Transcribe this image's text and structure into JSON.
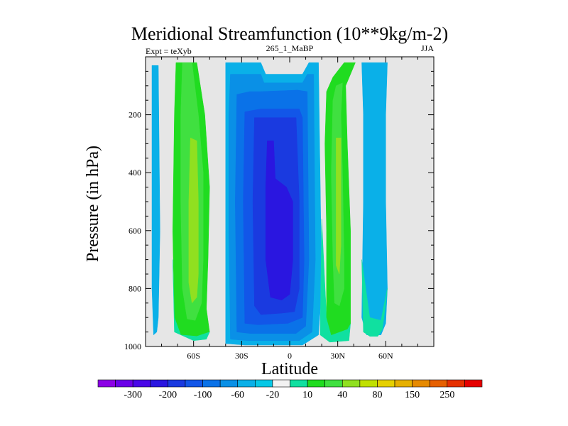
{
  "chart_data": {
    "type": "contour",
    "title": "Meridional Streamfunction (10**9kg/m-2)",
    "left_label": "Expt = teXyb",
    "center_label": "265_1_MaBP",
    "right_label": "JJA",
    "xlabel": "Latitude",
    "ylabel": "Pressure (in hPa)",
    "xlim": [
      -90,
      90
    ],
    "ylim": [
      1000,
      0
    ],
    "x_ticks": [
      {
        "value": -60,
        "label": "60S"
      },
      {
        "value": -30,
        "label": "30S"
      },
      {
        "value": 0,
        "label": "0"
      },
      {
        "value": 30,
        "label": "30N"
      },
      {
        "value": 60,
        "label": "60N"
      }
    ],
    "y_ticks": [
      {
        "value": 200,
        "label": "200"
      },
      {
        "value": 400,
        "label": "400"
      },
      {
        "value": 600,
        "label": "600"
      },
      {
        "value": 800,
        "label": "800"
      },
      {
        "value": 1000,
        "label": "1000"
      }
    ],
    "missing_color": "#e6e6e6",
    "colorbar": {
      "colors": [
        "#8c00e6",
        "#6a00e8",
        "#4a08e8",
        "#2a16e0",
        "#1a3ae0",
        "#1256e8",
        "#0a72e8",
        "#0a90e6",
        "#0ab0e8",
        "#06c8e6",
        "#f2f2f2",
        "#10e0a0",
        "#20dc20",
        "#40e040",
        "#90e020",
        "#c0e000",
        "#e6d000",
        "#e6b000",
        "#e68a00",
        "#e66000",
        "#e63000",
        "#e60000"
      ],
      "labels": [
        {
          "after": 1,
          "text": "-300"
        },
        {
          "after": 3,
          "text": "-200"
        },
        {
          "after": 5,
          "text": "-100"
        },
        {
          "after": 7,
          "text": "-60"
        },
        {
          "after": 9,
          "text": "-20"
        },
        {
          "after": 11,
          "text": "10"
        },
        {
          "after": 13,
          "text": "40"
        },
        {
          "after": 15,
          "text": "80"
        },
        {
          "after": 17,
          "text": "150"
        },
        {
          "after": 19,
          "text": "250"
        }
      ]
    },
    "contour_polygons": [
      {
        "level": "-20 to 10",
        "color": "#0ab0e8",
        "lat_p": [
          [
            -86,
            30
          ],
          [
            -82,
            30
          ],
          [
            -81,
            600
          ],
          [
            -82,
            900
          ],
          [
            -83,
            950
          ],
          [
            -85,
            960
          ],
          [
            -86,
            800
          ]
        ]
      },
      {
        "level": "10 to 40",
        "color": "#20dc20",
        "lat_p": [
          [
            -71,
            20
          ],
          [
            -58,
            20
          ],
          [
            -53,
            200
          ],
          [
            -50,
            450
          ],
          [
            -51,
            700
          ],
          [
            -52,
            870
          ],
          [
            -50,
            950
          ],
          [
            -58,
            965
          ],
          [
            -68,
            960
          ],
          [
            -72,
            900
          ],
          [
            -73,
            600
          ],
          [
            -72,
            200
          ]
        ]
      },
      {
        "level": "40 to 80",
        "color": "#40e040",
        "lat_p": [
          [
            -67,
            20
          ],
          [
            -61,
            20
          ],
          [
            -57,
            200
          ],
          [
            -54,
            400
          ],
          [
            -54,
            700
          ],
          [
            -55,
            850
          ],
          [
            -59,
            910
          ],
          [
            -64,
            905
          ],
          [
            -67,
            800
          ],
          [
            -68,
            500
          ],
          [
            -68,
            200
          ]
        ]
      },
      {
        "level": "80 to 150",
        "color": "#90e020",
        "lat_p": [
          [
            -62,
            280
          ],
          [
            -58,
            290
          ],
          [
            -57,
            500
          ],
          [
            -57,
            750
          ],
          [
            -58,
            830
          ],
          [
            -61,
            850
          ],
          [
            -63,
            780
          ],
          [
            -63,
            500
          ]
        ]
      },
      {
        "level": "10 to 40",
        "color": "#10e0a0",
        "lat_p": [
          [
            -73,
            700
          ],
          [
            -72,
            950
          ],
          [
            -60,
            980
          ],
          [
            -52,
            975
          ],
          [
            -50,
            950
          ],
          [
            -58,
            965
          ],
          [
            -68,
            960
          ],
          [
            -72,
            900
          ]
        ]
      },
      {
        "level": "-20 to 10",
        "color": "#0ab0e8",
        "lat_p": [
          [
            -40,
            20
          ],
          [
            -18,
            20
          ],
          [
            -15,
            60
          ],
          [
            8,
            60
          ],
          [
            12,
            20
          ],
          [
            18,
            20
          ],
          [
            20,
            800
          ],
          [
            18,
            960
          ],
          [
            8,
            995
          ],
          [
            -28,
            995
          ],
          [
            -40,
            990
          ],
          [
            -40,
            600
          ],
          [
            -40,
            200
          ]
        ]
      },
      {
        "level": "-60 to -20",
        "color": "#0a90e6",
        "lat_p": [
          [
            -37,
            60
          ],
          [
            -18,
            60
          ],
          [
            -16,
            90
          ],
          [
            8,
            90
          ],
          [
            11,
            60
          ],
          [
            15,
            60
          ],
          [
            16,
            700
          ],
          [
            14,
            950
          ],
          [
            6,
            980
          ],
          [
            -26,
            980
          ],
          [
            -37,
            975
          ],
          [
            -38,
            600
          ],
          [
            -38,
            200
          ]
        ]
      },
      {
        "level": "-100 to -60",
        "color": "#0a72e8",
        "lat_p": [
          [
            -33,
            130
          ],
          [
            -25,
            120
          ],
          [
            -18,
            120
          ],
          [
            5,
            115
          ],
          [
            11,
            120
          ],
          [
            12,
            700
          ],
          [
            10,
            930
          ],
          [
            4,
            955
          ],
          [
            -25,
            955
          ],
          [
            -33,
            950
          ],
          [
            -34,
            500
          ]
        ]
      },
      {
        "level": "-100",
        "color": "#1256e8",
        "lat_p": [
          [
            -28,
            190
          ],
          [
            -18,
            180
          ],
          [
            6,
            180
          ],
          [
            8,
            210
          ],
          [
            9,
            700
          ],
          [
            8,
            900
          ],
          [
            -1,
            920
          ],
          [
            -20,
            925
          ],
          [
            -28,
            920
          ],
          [
            -29,
            500
          ]
        ]
      },
      {
        "level": "-150",
        "color": "#1a3ae0",
        "lat_p": [
          [
            -22,
            210
          ],
          [
            4,
            210
          ],
          [
            6,
            500
          ],
          [
            6,
            800
          ],
          [
            3,
            880
          ],
          [
            -5,
            885
          ],
          [
            -18,
            890
          ],
          [
            -22,
            860
          ],
          [
            -23,
            500
          ]
        ]
      },
      {
        "level": "-200",
        "color": "#2a16e0",
        "lat_p": [
          [
            -14,
            290
          ],
          [
            -10,
            290
          ],
          [
            -9,
            420
          ],
          [
            -2,
            450
          ],
          [
            2,
            500
          ],
          [
            2,
            700
          ],
          [
            0,
            820
          ],
          [
            -5,
            840
          ],
          [
            -12,
            830
          ],
          [
            -15,
            700
          ],
          [
            -15,
            450
          ]
        ]
      },
      {
        "level": "10 to 40",
        "color": "#10e0a0",
        "lat_p": [
          [
            20,
            560
          ],
          [
            19,
            960
          ],
          [
            25,
            985
          ],
          [
            37,
            980
          ],
          [
            38,
            920
          ],
          [
            36,
            940
          ],
          [
            26,
            960
          ],
          [
            23,
            900
          ]
        ]
      },
      {
        "level": "10 to 40",
        "color": "#20dc20",
        "lat_p": [
          [
            23,
            120
          ],
          [
            27,
            70
          ],
          [
            34,
            20
          ],
          [
            41,
            20
          ],
          [
            35,
            100
          ],
          [
            36,
            300
          ],
          [
            38,
            600
          ],
          [
            38,
            920
          ],
          [
            36,
            940
          ],
          [
            26,
            960
          ],
          [
            23,
            900
          ],
          [
            23,
            600
          ],
          [
            22,
            300
          ]
        ]
      },
      {
        "level": "40 to 80",
        "color": "#40e040",
        "lat_p": [
          [
            27,
            150
          ],
          [
            29,
            100
          ],
          [
            33,
            90
          ],
          [
            32,
            200
          ],
          [
            33,
            400
          ],
          [
            34,
            700
          ],
          [
            34,
            800
          ],
          [
            31,
            860
          ],
          [
            28,
            850
          ],
          [
            27,
            700
          ],
          [
            26,
            400
          ]
        ]
      },
      {
        "level": "80 to 150",
        "color": "#90e020",
        "lat_p": [
          [
            29,
            280
          ],
          [
            32,
            280
          ],
          [
            32,
            500
          ],
          [
            32,
            650
          ],
          [
            31,
            750
          ],
          [
            29,
            720
          ],
          [
            29,
            500
          ]
        ]
      },
      {
        "level": "-20 to 10",
        "color": "#0ab0e8",
        "lat_p": [
          [
            45,
            20
          ],
          [
            61,
            20
          ],
          [
            60,
            200
          ],
          [
            60,
            500
          ],
          [
            61,
            800
          ],
          [
            60,
            920
          ],
          [
            57,
            960
          ],
          [
            48,
            960
          ],
          [
            45,
            900
          ],
          [
            46,
            500
          ],
          [
            46,
            200
          ]
        ]
      },
      {
        "level": "10 to 40",
        "color": "#10e0a0",
        "lat_p": [
          [
            45,
            700
          ],
          [
            46,
            950
          ],
          [
            50,
            965
          ],
          [
            55,
            965
          ],
          [
            58,
            940
          ],
          [
            61,
            800
          ],
          [
            57,
            910
          ],
          [
            50,
            900
          ]
        ]
      }
    ]
  }
}
